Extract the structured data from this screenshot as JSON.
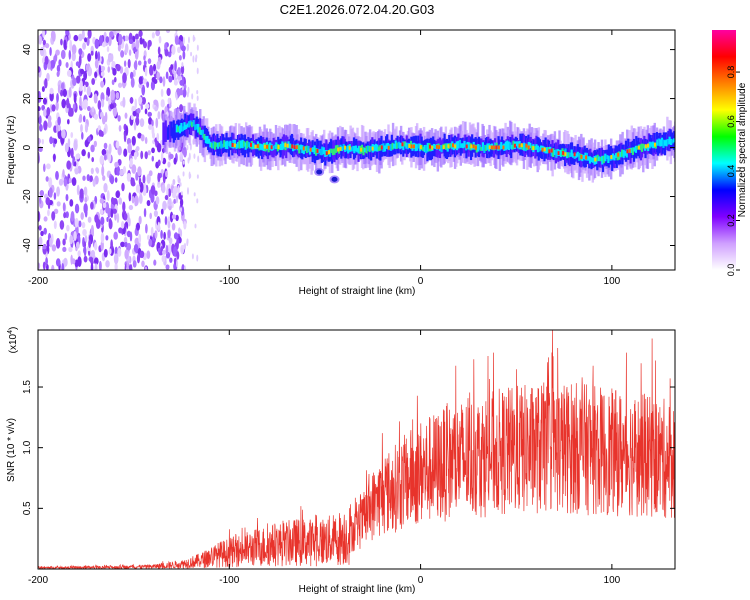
{
  "figure_title": "C2E1.2026.072.04.20.G03",
  "chart_data": [
    {
      "type": "heatmap",
      "title": "C2E1.2026.072.04.20.G03",
      "xlabel": "Height of straight line (km)",
      "ylabel": "Frequency (Hz)",
      "xlim": [
        -200,
        133
      ],
      "ylim": [
        -50,
        48
      ],
      "x_ticks": [
        -200,
        -100,
        0,
        100
      ],
      "y_ticks": [
        -40,
        -20,
        0,
        20,
        40
      ],
      "x_tick_labels": [
        "-200",
        "-100",
        "0",
        "100"
      ],
      "y_tick_labels": [
        "-40",
        "-20",
        "0",
        "20",
        "40"
      ],
      "colorbar": {
        "label": "Normalized spectral amplitude",
        "range": [
          0,
          0.97
        ],
        "ticks": [
          0,
          0.2,
          0.4,
          0.6,
          0.8
        ],
        "tick_labels": [
          "0.0",
          "0.2",
          "0.4",
          "0.6",
          "0.8"
        ],
        "colors": [
          "#ffffff",
          "#cf9fff",
          "#8000ff",
          "#0000ff",
          "#00ffff",
          "#00ff00",
          "#ffff00",
          "#ff8000",
          "#ff0000",
          "#ff00a0"
        ]
      },
      "noise_region_x": [
        -200,
        -133
      ],
      "ridge": {
        "x": [
          -135,
          -125,
          -120,
          -115,
          -110,
          -100,
          -90,
          -80,
          -70,
          -60,
          -50,
          -40,
          -30,
          -20,
          -10,
          0,
          10,
          20,
          30,
          40,
          50,
          60,
          70,
          80,
          90,
          100,
          110,
          120,
          133
        ],
        "frequency": [
          6,
          8,
          10,
          6,
          1,
          1,
          1,
          0,
          1,
          -1,
          -2,
          0,
          -1,
          0,
          1,
          0,
          0,
          1,
          0,
          0,
          1,
          0,
          -2,
          -3,
          -5,
          -4,
          -1,
          1,
          3
        ]
      },
      "blobs": [
        {
          "x": -53,
          "frequency": -10
        },
        {
          "x": -45,
          "frequency": -13
        }
      ]
    },
    {
      "type": "line",
      "xlabel": "Height of straight line (km)",
      "ylabel": "SNR (10 * v/v)",
      "multiplier_label": "(x10",
      "multiplier_exponent": "4",
      "multiplier_suffix": ")",
      "xlim": [
        -200,
        133
      ],
      "ylim": [
        0,
        1.97
      ],
      "x_ticks": [
        -200,
        -100,
        0,
        100
      ],
      "y_ticks": [
        0.5,
        1.0,
        1.5
      ],
      "x_tick_labels": [
        "-200",
        "-100",
        "0",
        "100"
      ],
      "y_tick_labels": [
        "0.5",
        "1.0",
        "1.5"
      ],
      "color": "#e8332b",
      "envelope": {
        "x": [
          -200,
          -180,
          -160,
          -140,
          -125,
          -115,
          -105,
          -95,
          -85,
          -75,
          -65,
          -55,
          -45,
          -38,
          -32,
          -28,
          -24,
          -20,
          -15,
          -10,
          -5,
          0,
          10,
          20,
          30,
          40,
          50,
          60,
          70,
          80,
          90,
          100,
          110,
          120,
          133
        ],
        "snr": [
          0.01,
          0.012,
          0.015,
          0.02,
          0.04,
          0.07,
          0.12,
          0.15,
          0.18,
          0.2,
          0.22,
          0.22,
          0.24,
          0.28,
          0.35,
          0.45,
          0.55,
          0.6,
          0.65,
          0.7,
          0.75,
          0.8,
          0.85,
          0.9,
          0.93,
          0.96,
          0.98,
          0.99,
          1.0,
          1.0,
          0.98,
          0.96,
          0.95,
          0.92,
          0.9
        ]
      },
      "peaks": [
        {
          "x": 69,
          "snr": 1.97
        },
        {
          "x": 121,
          "snr": 1.9
        },
        {
          "x": -20,
          "snr": 1.12
        }
      ]
    }
  ]
}
